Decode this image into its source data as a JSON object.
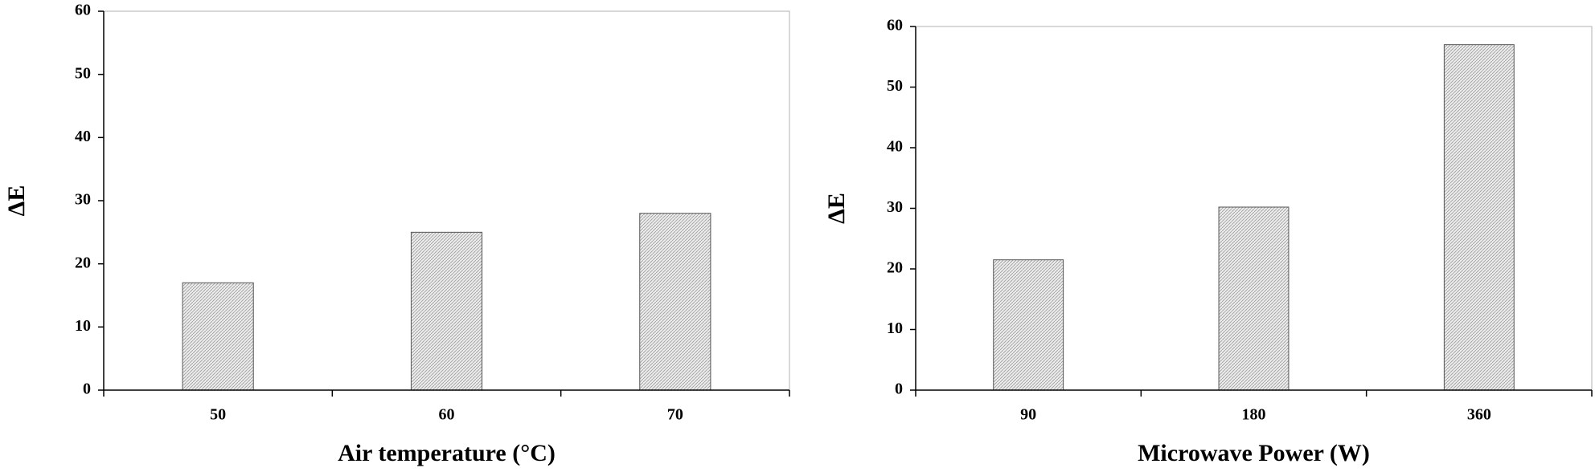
{
  "chart_data": [
    {
      "type": "bar",
      "categories": [
        "50",
        "60",
        "70"
      ],
      "values": [
        17,
        25,
        28
      ],
      "color": "#d9d9d9",
      "xlabel": "Air temperature (°C)",
      "ylabel": "ΔE",
      "ylim": [
        0,
        60
      ],
      "yticks": [
        0,
        10,
        20,
        30,
        40,
        50,
        60
      ]
    },
    {
      "type": "bar",
      "categories": [
        "90",
        "180",
        "360"
      ],
      "values": [
        21.5,
        30.2,
        57
      ],
      "color": "#d9d9d9",
      "xlabel": "Microwave Power (W)",
      "ylabel": "ΔE",
      "ylim": [
        0,
        60
      ],
      "yticks": [
        0,
        10,
        20,
        30,
        40,
        50,
        60
      ]
    }
  ]
}
